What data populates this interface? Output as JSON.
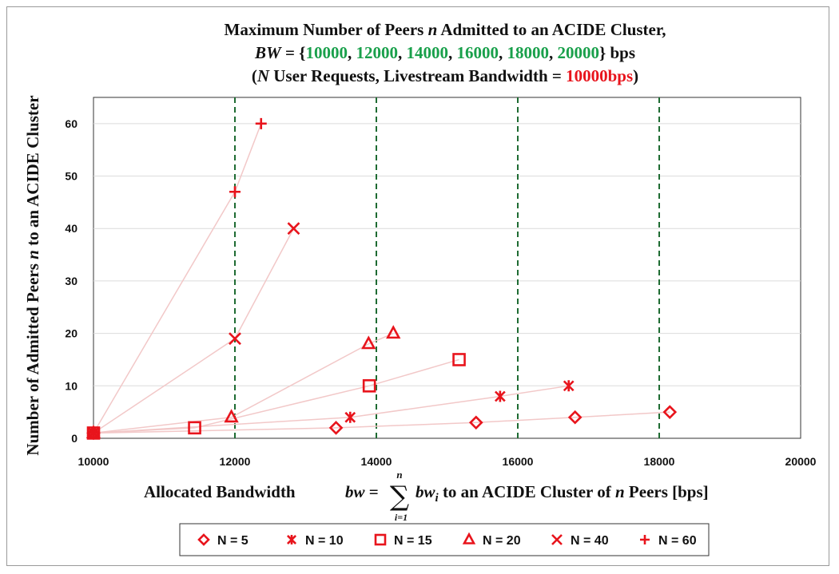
{
  "chart_data": {
    "type": "scatter",
    "title": {
      "line1_a": "Maximum Number of Peers ",
      "line1_var": "n",
      "line1_b": " Admitted to an ACIDE Cluster,",
      "line2_var": "BW",
      "line2_eq": " = {",
      "bw_values": [
        "10000",
        "12000",
        "14000",
        "16000",
        "18000",
        "20000"
      ],
      "line2_sep": ", ",
      "line2_end": "} bps",
      "line3_open": "(",
      "line3_var": "N",
      "line3_mid": " User Requests, Livestream Bandwidth = ",
      "line3_value": "10000bps",
      "line3_close": ")"
    },
    "xlabel": {
      "prefix": "Allocated Bandwidth",
      "formula_lhs": "bw",
      "formula_eq": " = ",
      "sum_sym": "∑",
      "sum_top": "n",
      "sum_bottom": "i=1",
      "formula_term": "bw",
      "formula_sub": "i",
      "suffix_a": " to an ACIDE Cluster of ",
      "suffix_var": "n",
      "suffix_b": " Peers [bps]"
    },
    "ylabel": {
      "a": "Number of Admitted Peers ",
      "var": "n",
      "b": " to an ACIDE Cluster"
    },
    "xlim": [
      10000,
      20000
    ],
    "ylim": [
      0,
      65
    ],
    "xticks": [
      10000,
      12000,
      14000,
      16000,
      18000,
      20000
    ],
    "yticks": [
      0,
      10,
      20,
      30,
      40,
      50,
      60
    ],
    "vlines": [
      12000,
      14000,
      16000,
      18000
    ],
    "grid": "horizontal",
    "legend_position": "bottom",
    "series": [
      {
        "name": "N = 5",
        "marker": "diamond",
        "x": [
          10000,
          13430,
          15410,
          16810,
          18150
        ],
        "y": [
          1,
          2,
          3,
          4,
          5
        ]
      },
      {
        "name": "N = 10",
        "marker": "asterisk",
        "x": [
          10000,
          13630,
          15750,
          16720
        ],
        "y": [
          1,
          4,
          8,
          10
        ]
      },
      {
        "name": "N = 15",
        "marker": "square",
        "x": [
          10000,
          11430,
          13900,
          15170
        ],
        "y": [
          1,
          2,
          10,
          15
        ]
      },
      {
        "name": "N = 20",
        "marker": "triangle",
        "x": [
          10000,
          11950,
          13890,
          14240
        ],
        "y": [
          1,
          4,
          18,
          20
        ]
      },
      {
        "name": "N = 40",
        "marker": "x",
        "x": [
          10000,
          12000,
          12830
        ],
        "y": [
          1,
          19,
          40
        ]
      },
      {
        "name": "N = 60",
        "marker": "plus",
        "x": [
          10000,
          12000,
          12370
        ],
        "y": [
          1,
          47,
          60
        ]
      }
    ],
    "colors": {
      "marker": "#e8141c",
      "line": "#f2c8c8",
      "vline": "#1e6b32",
      "green_text": "#19a04b",
      "red_text": "#e8141c",
      "grid": "#dcdcdc"
    }
  }
}
